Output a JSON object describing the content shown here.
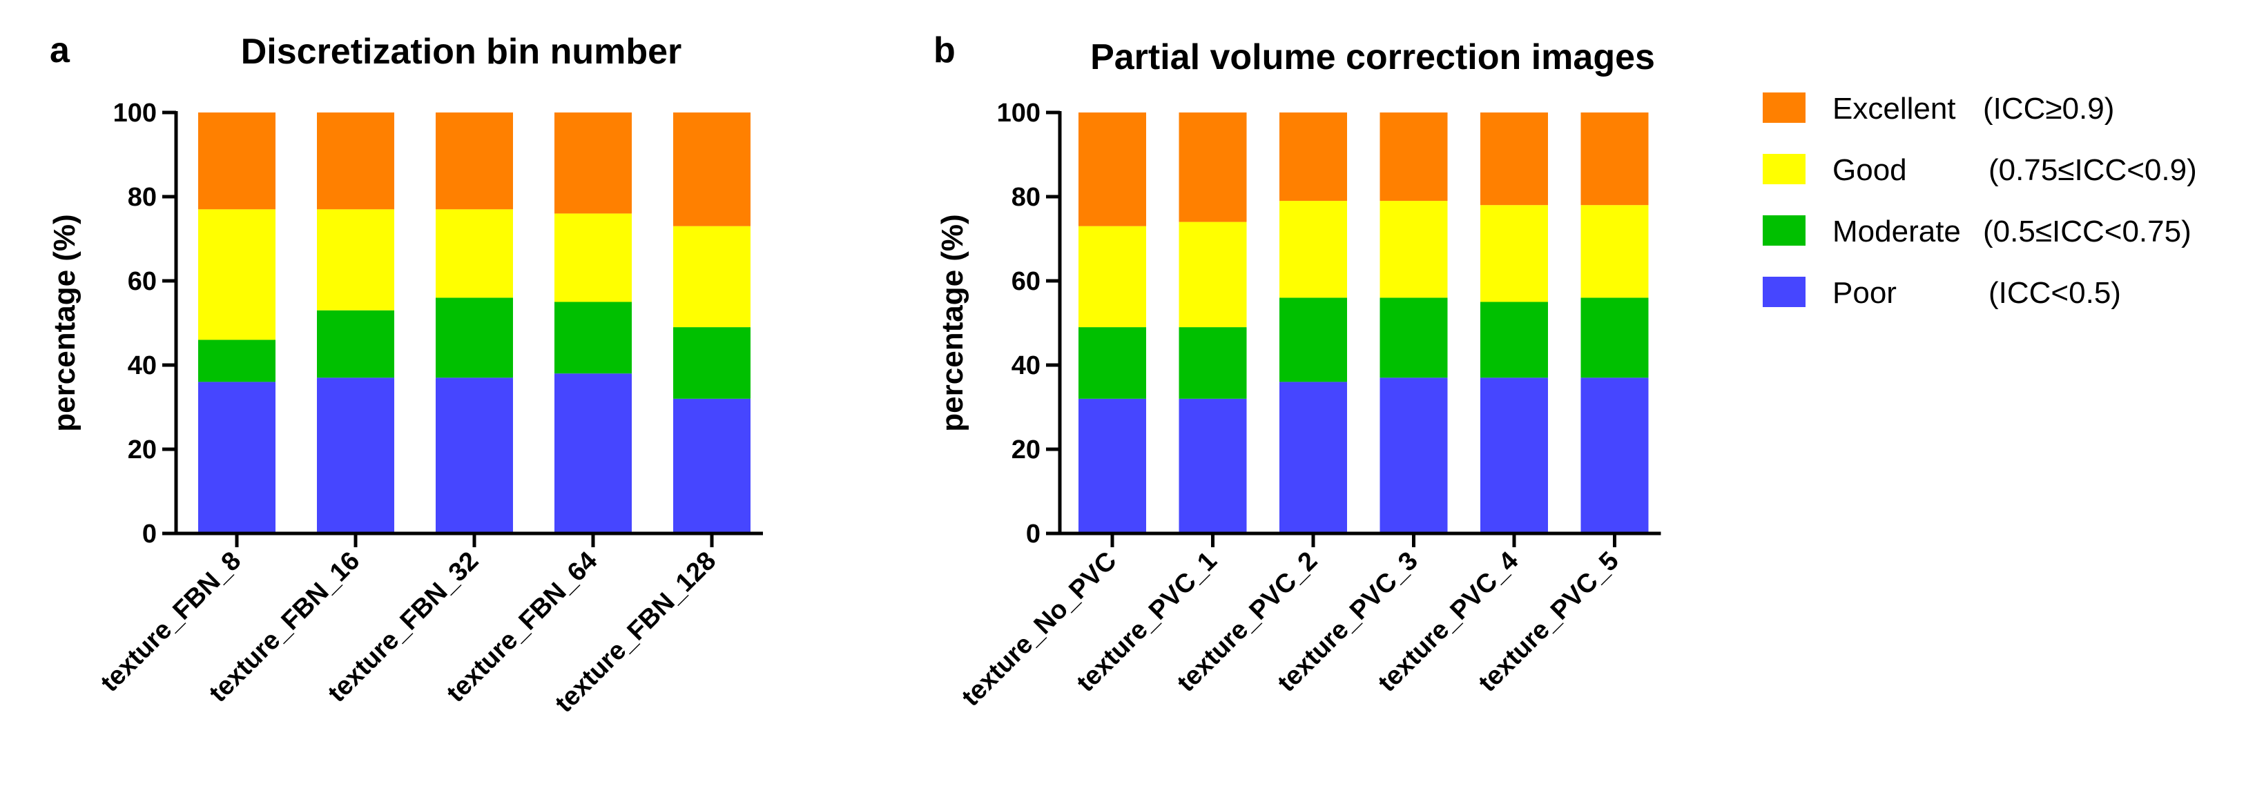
{
  "chart_data": [
    {
      "type": "bar",
      "stacked": true,
      "panel": "a",
      "title": "Discretization bin number",
      "xlabel": "",
      "ylabel": "percentage (%)",
      "ylim": [
        0,
        100
      ],
      "yticks": [
        0,
        20,
        40,
        60,
        80,
        100
      ],
      "categories": [
        "texture_FBN_8",
        "texture_FBN_16",
        "texture_FBN_32",
        "texture_FBN_64",
        "texture_FBN_128"
      ],
      "series": [
        {
          "name": "Poor",
          "color": "#4646FF",
          "values": [
            36,
            37,
            37,
            38,
            32
          ]
        },
        {
          "name": "Moderate",
          "color": "#00C000",
          "values": [
            10,
            16,
            19,
            17,
            17
          ]
        },
        {
          "name": "Good",
          "color": "#FFFF00",
          "values": [
            31,
            24,
            21,
            21,
            24
          ]
        },
        {
          "name": "Excellent",
          "color": "#FF8000",
          "values": [
            23,
            23,
            23,
            24,
            27
          ]
        }
      ]
    },
    {
      "type": "bar",
      "stacked": true,
      "panel": "b",
      "title": "Partial volume correction images",
      "xlabel": "",
      "ylabel": "percentage (%)",
      "ylim": [
        0,
        100
      ],
      "yticks": [
        0,
        20,
        40,
        60,
        80,
        100
      ],
      "categories": [
        "texture_No_PVC",
        "texture_PVC_1",
        "texture_PVC_2",
        "texture_PVC_3",
        "texture_PVC_4",
        "texture_PVC_5"
      ],
      "series": [
        {
          "name": "Poor",
          "color": "#4646FF",
          "values": [
            32,
            32,
            36,
            37,
            37,
            37
          ]
        },
        {
          "name": "Moderate",
          "color": "#00C000",
          "values": [
            17,
            17,
            20,
            19,
            18,
            19
          ]
        },
        {
          "name": "Good",
          "color": "#FFFF00",
          "values": [
            24,
            25,
            23,
            23,
            23,
            22
          ]
        },
        {
          "name": "Excellent",
          "color": "#FF8000",
          "values": [
            27,
            26,
            21,
            21,
            22,
            22
          ]
        }
      ]
    }
  ],
  "legend": [
    {
      "name": "Excellent",
      "range": "(ICC≥0.9)",
      "color": "#FF8000"
    },
    {
      "name": "Good",
      "range": "(0.75≤ICC<0.9)",
      "color": "#FFFF00"
    },
    {
      "name": "Moderate",
      "range": "(0.5≤ICC<0.75)",
      "color": "#00C000"
    },
    {
      "name": "Poor",
      "range": "(ICC<0.5)",
      "color": "#4646FF"
    }
  ]
}
